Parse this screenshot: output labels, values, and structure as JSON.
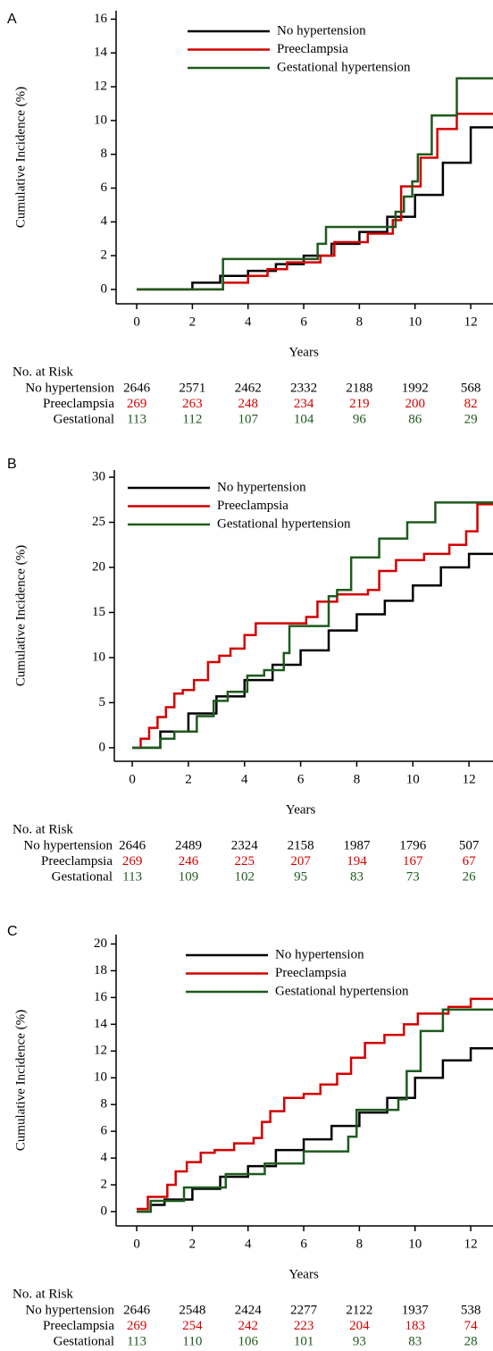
{
  "chart_data": [
    {
      "type": "step",
      "panel_label": "A",
      "y_label": "Cumulative Incidence (%)",
      "x_label": "Years",
      "xlim": [
        -0.74,
        13
      ],
      "ylim": [
        -0.85,
        16.5
      ],
      "xticks": [
        0,
        2,
        4,
        6,
        8,
        10,
        12
      ],
      "yticks": [
        0,
        2,
        4,
        6,
        8,
        10,
        12,
        14,
        16
      ],
      "series": [
        {
          "name": "No hypertension",
          "color": "#000000",
          "x": [
            0,
            1.3,
            2,
            3,
            4,
            5,
            6,
            7,
            8,
            9,
            10,
            11,
            12,
            13
          ],
          "values": [
            0,
            0,
            0.4,
            0.8,
            1.1,
            1.5,
            2.0,
            2.7,
            3.4,
            4.3,
            5.6,
            7.5,
            9.6,
            10.7
          ]
        },
        {
          "name": "Preeclampsia",
          "color": "#d40000",
          "x": [
            0,
            3.1,
            4,
            4.7,
            5.4,
            6.6,
            7.1,
            8.3,
            9.2,
            9.5,
            10.2,
            10.8,
            11.5,
            13
          ],
          "values": [
            0,
            0.4,
            0.8,
            1.2,
            1.6,
            2.0,
            2.8,
            3.3,
            4.1,
            6.1,
            7.8,
            9.5,
            10.4,
            10.4
          ]
        },
        {
          "name": "Gestational hypertension",
          "color": "#1e5a1e",
          "x": [
            0,
            3.1,
            6.5,
            6.8,
            9.3,
            9.6,
            9.9,
            10.1,
            10.6,
            11.5,
            13
          ],
          "values": [
            0,
            1.8,
            2.7,
            3.7,
            4.6,
            5.5,
            6.4,
            8.0,
            10.3,
            12.5,
            12.5
          ]
        }
      ],
      "risk_table": {
        "title": "No. at Risk",
        "rows": [
          {
            "label": "No hypertension",
            "color": "#000000",
            "values": [
              2646,
              2571,
              2462,
              2332,
              2188,
              1992,
              568
            ]
          },
          {
            "label": "Preeclampsia",
            "color": "#d40000",
            "values": [
              269,
              263,
              248,
              234,
              219,
              200,
              82
            ]
          },
          {
            "label": "Gestational",
            "color": "#1e5a1e",
            "values": [
              113,
              112,
              107,
              104,
              96,
              86,
              29
            ]
          }
        ]
      }
    },
    {
      "type": "step",
      "panel_label": "B",
      "y_label": "Cumulative Incidence (%)",
      "x_label": "Years",
      "xlim": [
        -0.64,
        13
      ],
      "ylim": [
        -1.5,
        30.8
      ],
      "xticks": [
        0,
        2,
        4,
        6,
        8,
        10,
        12
      ],
      "yticks": [
        0,
        5,
        10,
        15,
        20,
        25,
        30
      ],
      "series": [
        {
          "name": "No hypertension",
          "color": "#000000",
          "x": [
            0,
            1,
            2,
            3,
            4,
            5,
            6,
            7,
            8,
            9,
            10,
            11,
            12,
            13
          ],
          "values": [
            0,
            1.8,
            3.8,
            5.7,
            7.5,
            9.2,
            10.8,
            13,
            14.8,
            16.3,
            18,
            20,
            21.5,
            22.8
          ]
        },
        {
          "name": "Preeclampsia",
          "color": "#d40000",
          "x": [
            0,
            0.3,
            0.6,
            0.9,
            1.2,
            1.5,
            1.8,
            2.2,
            2.7,
            3.1,
            3.5,
            4.0,
            4.4,
            5.2,
            6.2,
            6.6,
            7.3,
            8.4,
            8.8,
            9.4,
            10.4,
            11.3,
            11.9,
            12.3,
            13
          ],
          "values": [
            0,
            1,
            2.2,
            3.4,
            4.5,
            6,
            6.4,
            7.5,
            9.5,
            10.2,
            11,
            12.5,
            13.8,
            13.8,
            14.5,
            16.2,
            17.0,
            17.5,
            19.6,
            20.8,
            21.5,
            22.5,
            24.0,
            27.0,
            27.0
          ]
        },
        {
          "name": "Gestational hypertension",
          "color": "#1e5a1e",
          "x": [
            0,
            0.3,
            1,
            1.5,
            2.3,
            2.9,
            3.4,
            4.1,
            4.7,
            5.4,
            5.6,
            7.0,
            7.3,
            7.8,
            8.8,
            9.2,
            9.8,
            10.8,
            13
          ],
          "values": [
            0,
            0,
            1,
            1.8,
            3.5,
            5.2,
            6.2,
            8.0,
            8.6,
            10.5,
            13.5,
            16.8,
            17.5,
            21.1,
            23.2,
            23.2,
            25,
            27.2,
            27.2
          ]
        }
      ],
      "risk_table": {
        "title": "No. at Risk",
        "rows": [
          {
            "label": "No hypertension",
            "color": "#000000",
            "values": [
              2646,
              2489,
              2324,
              2158,
              1987,
              1796,
              507
            ]
          },
          {
            "label": "Preeclampsia",
            "color": "#d40000",
            "values": [
              269,
              246,
              225,
              207,
              194,
              167,
              67
            ]
          },
          {
            "label": "Gestational",
            "color": "#1e5a1e",
            "values": [
              113,
              109,
              102,
              95,
              83,
              73,
              26
            ]
          }
        ]
      }
    },
    {
      "type": "step",
      "panel_label": "C",
      "y_label": "Cumulative Incidence (%)",
      "x_label": "Years",
      "xlim": [
        -0.74,
        13
      ],
      "ylim": [
        -1.07,
        20.7
      ],
      "xticks": [
        0,
        2,
        4,
        6,
        8,
        10,
        12
      ],
      "yticks": [
        0,
        2,
        4,
        6,
        8,
        10,
        12,
        14,
        16,
        18,
        20
      ],
      "series": [
        {
          "name": "No hypertension",
          "color": "#000000",
          "x": [
            0,
            0.5,
            1,
            2,
            3,
            4,
            5,
            6,
            7,
            8,
            9,
            10,
            11,
            12,
            13
          ],
          "values": [
            0,
            0.5,
            0.9,
            1.7,
            2.6,
            3.4,
            4.6,
            5.4,
            6.4,
            7.4,
            8.5,
            10,
            11.3,
            12.2,
            13
          ]
        },
        {
          "name": "Preeclampsia",
          "color": "#d40000",
          "x": [
            0,
            0.4,
            1.1,
            1.4,
            1.8,
            2.3,
            2.8,
            3.5,
            4.2,
            4.5,
            4.8,
            5.3,
            6.0,
            6.6,
            7.2,
            7.7,
            8.2,
            8.9,
            9.6,
            10.1,
            11.2,
            12,
            13
          ],
          "values": [
            0.2,
            1.1,
            2.0,
            3.0,
            3.7,
            4.4,
            4.6,
            5.1,
            5.5,
            6.7,
            7.5,
            8.5,
            8.8,
            9.5,
            10.3,
            11.5,
            12.6,
            13.2,
            14.0,
            14.8,
            15.3,
            15.9,
            15.9
          ]
        },
        {
          "name": "Gestational hypertension",
          "color": "#1e5a1e",
          "x": [
            0,
            0.5,
            1.7,
            3.2,
            4.6,
            6.0,
            7.6,
            7.9,
            9.4,
            9.7,
            10.2,
            11.0,
            13
          ],
          "values": [
            0,
            0.8,
            1.8,
            2.8,
            3.6,
            4.5,
            5.6,
            7.6,
            8.4,
            10.5,
            13.5,
            15.1,
            15.1
          ]
        }
      ],
      "risk_table": {
        "title": "No. at Risk",
        "rows": [
          {
            "label": "No hypertension",
            "color": "#000000",
            "values": [
              2646,
              2548,
              2424,
              2277,
              2122,
              1937,
              538
            ]
          },
          {
            "label": "Preeclampsia",
            "color": "#d40000",
            "values": [
              269,
              254,
              242,
              223,
              204,
              183,
              74
            ]
          },
          {
            "label": "Gestational",
            "color": "#1e5a1e",
            "values": [
              113,
              110,
              106,
              101,
              93,
              83,
              28
            ]
          }
        ]
      }
    }
  ]
}
